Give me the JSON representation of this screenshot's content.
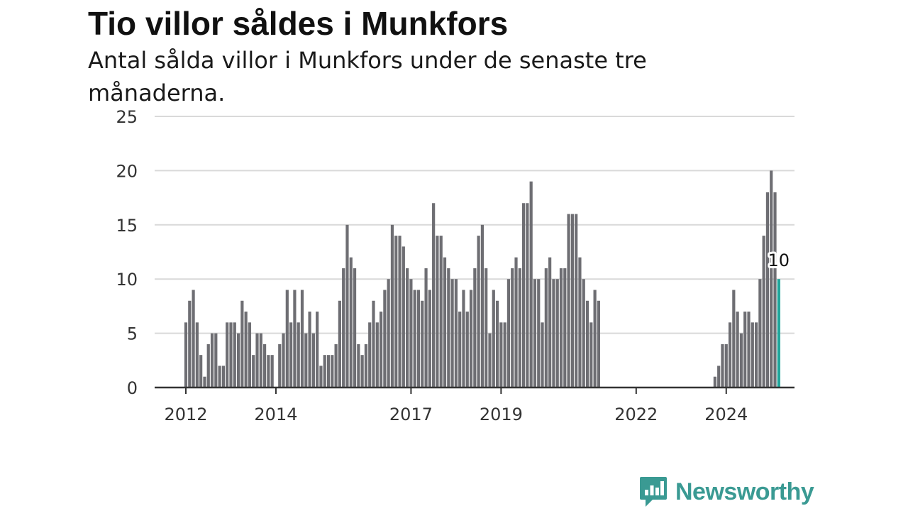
{
  "header": {
    "title": "Tio villor såldes i Munkfors",
    "subtitle": "Antal sålda villor i Munkfors under de senaste tre månaderna."
  },
  "brand": {
    "name": "Newsworthy",
    "color": "#3a9a93"
  },
  "colors": {
    "bar": "#6e6e73",
    "highlight": "#1fa59b",
    "grid": "#d9d9d9",
    "axis": "#333333"
  },
  "chart_data": {
    "type": "bar",
    "x_tick_labels": [
      "2012",
      "2014",
      "2017",
      "2019",
      "2022",
      "2024"
    ],
    "y_ticks": [
      0,
      5,
      10,
      15,
      20,
      25
    ],
    "ylim": [
      0,
      25
    ],
    "grid": true,
    "first_month": "2012-01",
    "values": [
      6,
      8,
      9,
      6,
      3,
      1,
      4,
      5,
      5,
      2,
      2,
      6,
      6,
      6,
      5,
      8,
      7,
      6,
      3,
      5,
      5,
      4,
      3,
      3,
      null,
      4,
      5,
      9,
      6,
      9,
      6,
      9,
      5,
      7,
      5,
      7,
      2,
      3,
      3,
      3,
      4,
      8,
      11,
      15,
      12,
      11,
      4,
      3,
      4,
      6,
      8,
      6,
      7,
      9,
      10,
      15,
      14,
      14,
      13,
      11,
      10,
      9,
      9,
      8,
      11,
      9,
      17,
      14,
      14,
      12,
      11,
      10,
      10,
      7,
      9,
      7,
      9,
      11,
      14,
      15,
      11,
      5,
      9,
      8,
      6,
      6,
      10,
      11,
      12,
      11,
      17,
      17,
      19,
      10,
      10,
      6,
      11,
      12,
      10,
      10,
      11,
      11,
      16,
      16,
      16,
      12,
      10,
      8,
      6,
      9,
      8,
      null,
      null,
      null,
      null,
      null,
      null,
      null,
      null,
      null,
      null,
      null,
      null,
      null,
      null,
      null,
      null,
      null,
      null,
      null,
      null,
      null,
      null,
      null,
      null,
      null,
      null,
      null,
      null,
      null,
      null,
      1,
      2,
      4,
      4,
      6,
      9,
      7,
      5,
      7,
      7,
      6,
      6,
      10,
      14,
      18,
      20,
      18,
      10
    ],
    "highlight_last": true,
    "highlight_label": "10"
  }
}
